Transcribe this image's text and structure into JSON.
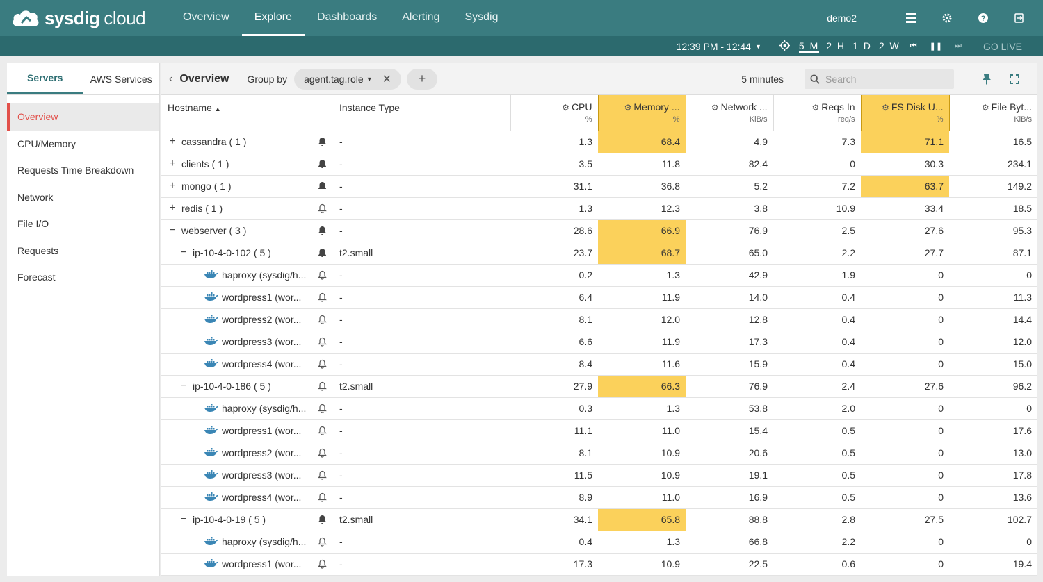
{
  "topbar": {
    "logo_bold": "sysdig",
    "logo_light": "cloud",
    "nav": [
      "Overview",
      "Explore",
      "Dashboards",
      "Alerting",
      "Sysdig"
    ],
    "active_nav": "Explore",
    "user": "demo2"
  },
  "timebar": {
    "range": "12:39 PM - 12:44",
    "ranges": [
      "5 M",
      "2 H",
      "1 D",
      "2 W"
    ],
    "active_range": "5 M",
    "go_live": "GO LIVE"
  },
  "left": {
    "tabs": [
      "Servers",
      "AWS Services"
    ],
    "menu": [
      "Overview",
      "CPU/Memory",
      "Requests Time Breakdown",
      "Network",
      "File I/O",
      "Requests",
      "Forecast"
    ]
  },
  "toolbar": {
    "title": "Overview",
    "group_by_label": "Group by",
    "group_by_value": "agent.tag.role",
    "add_label": "+",
    "period": "5 minutes",
    "search_placeholder": "Search"
  },
  "table": {
    "headers": {
      "hostname": "Hostname",
      "instance_type": "Instance Type",
      "cpu": "CPU",
      "cpu_unit": "%",
      "memory": "Memory ...",
      "memory_unit": "%",
      "network": "Network ...",
      "network_unit": "KiB/s",
      "reqs": "Reqs In",
      "reqs_unit": "req/s",
      "fsdisk": "FS Disk U...",
      "fsdisk_unit": "%",
      "filebytes": "File Byt...",
      "filebytes_unit": "KiB/s"
    },
    "highlight_color": "#fbd15b",
    "rows": [
      {
        "level": 0,
        "toggle": "+",
        "name": "cassandra ( 1 )",
        "bell": "filled",
        "inst": "-",
        "cpu": "1.3",
        "mem": "68.4",
        "net": "4.9",
        "req": "7.3",
        "fsd": "71.1",
        "fb": "16.5",
        "hl": [
          "mem",
          "fsd"
        ]
      },
      {
        "level": 0,
        "toggle": "+",
        "name": "clients ( 1 )",
        "bell": "filled",
        "inst": "-",
        "cpu": "3.5",
        "mem": "11.8",
        "net": "82.4",
        "req": "0",
        "fsd": "30.3",
        "fb": "234.1",
        "hl": []
      },
      {
        "level": 0,
        "toggle": "+",
        "name": "mongo ( 1 )",
        "bell": "filled",
        "inst": "-",
        "cpu": "31.1",
        "mem": "36.8",
        "net": "5.2",
        "req": "7.2",
        "fsd": "63.7",
        "fb": "149.2",
        "hl": [
          "fsd"
        ]
      },
      {
        "level": 0,
        "toggle": "+",
        "name": "redis ( 1 )",
        "bell": "outline",
        "inst": "-",
        "cpu": "1.3",
        "mem": "12.3",
        "net": "3.8",
        "req": "10.9",
        "fsd": "33.4",
        "fb": "18.5",
        "hl": []
      },
      {
        "level": 0,
        "toggle": "−",
        "name": "webserver ( 3 )",
        "bell": "filled",
        "inst": "-",
        "cpu": "28.6",
        "mem": "66.9",
        "net": "76.9",
        "req": "2.5",
        "fsd": "27.6",
        "fb": "95.3",
        "hl": [
          "mem"
        ]
      },
      {
        "level": 1,
        "toggle": "−",
        "name": "ip-10-4-0-102 ( 5 )",
        "bell": "filled",
        "inst": "t2.small",
        "cpu": "23.7",
        "mem": "68.7",
        "net": "65.0",
        "req": "2.2",
        "fsd": "27.7",
        "fb": "87.1",
        "hl": [
          "mem"
        ]
      },
      {
        "level": 2,
        "toggle": "",
        "name": "haproxy (sysdig/h...",
        "bell": "outline",
        "inst": "-",
        "cpu": "0.2",
        "mem": "1.3",
        "net": "42.9",
        "req": "1.9",
        "fsd": "0",
        "fb": "0",
        "hl": []
      },
      {
        "level": 2,
        "toggle": "",
        "name": "wordpress1 (wor...",
        "bell": "outline",
        "inst": "-",
        "cpu": "6.4",
        "mem": "11.9",
        "net": "14.0",
        "req": "0.4",
        "fsd": "0",
        "fb": "11.3",
        "hl": []
      },
      {
        "level": 2,
        "toggle": "",
        "name": "wordpress2 (wor...",
        "bell": "outline",
        "inst": "-",
        "cpu": "8.1",
        "mem": "12.0",
        "net": "12.8",
        "req": "0.4",
        "fsd": "0",
        "fb": "14.4",
        "hl": []
      },
      {
        "level": 2,
        "toggle": "",
        "name": "wordpress3 (wor...",
        "bell": "outline",
        "inst": "-",
        "cpu": "6.6",
        "mem": "11.9",
        "net": "17.3",
        "req": "0.4",
        "fsd": "0",
        "fb": "12.0",
        "hl": []
      },
      {
        "level": 2,
        "toggle": "",
        "name": "wordpress4 (wor...",
        "bell": "outline",
        "inst": "-",
        "cpu": "8.4",
        "mem": "11.6",
        "net": "15.9",
        "req": "0.4",
        "fsd": "0",
        "fb": "15.0",
        "hl": []
      },
      {
        "level": 1,
        "toggle": "−",
        "name": "ip-10-4-0-186 ( 5 )",
        "bell": "outline",
        "inst": "t2.small",
        "cpu": "27.9",
        "mem": "66.3",
        "net": "76.9",
        "req": "2.4",
        "fsd": "27.6",
        "fb": "96.2",
        "hl": [
          "mem"
        ]
      },
      {
        "level": 2,
        "toggle": "",
        "name": "haproxy (sysdig/h...",
        "bell": "outline",
        "inst": "-",
        "cpu": "0.3",
        "mem": "1.3",
        "net": "53.8",
        "req": "2.0",
        "fsd": "0",
        "fb": "0",
        "hl": []
      },
      {
        "level": 2,
        "toggle": "",
        "name": "wordpress1 (wor...",
        "bell": "outline",
        "inst": "-",
        "cpu": "11.1",
        "mem": "11.0",
        "net": "15.4",
        "req": "0.5",
        "fsd": "0",
        "fb": "17.6",
        "hl": []
      },
      {
        "level": 2,
        "toggle": "",
        "name": "wordpress2 (wor...",
        "bell": "outline",
        "inst": "-",
        "cpu": "8.1",
        "mem": "10.9",
        "net": "20.6",
        "req": "0.5",
        "fsd": "0",
        "fb": "13.0",
        "hl": []
      },
      {
        "level": 2,
        "toggle": "",
        "name": "wordpress3 (wor...",
        "bell": "outline",
        "inst": "-",
        "cpu": "11.5",
        "mem": "10.9",
        "net": "19.1",
        "req": "0.5",
        "fsd": "0",
        "fb": "17.8",
        "hl": []
      },
      {
        "level": 2,
        "toggle": "",
        "name": "wordpress4 (wor...",
        "bell": "outline",
        "inst": "-",
        "cpu": "8.9",
        "mem": "11.0",
        "net": "16.9",
        "req": "0.5",
        "fsd": "0",
        "fb": "13.6",
        "hl": []
      },
      {
        "level": 1,
        "toggle": "−",
        "name": "ip-10-4-0-19 ( 5 )",
        "bell": "filled",
        "inst": "t2.small",
        "cpu": "34.1",
        "mem": "65.8",
        "net": "88.8",
        "req": "2.8",
        "fsd": "27.5",
        "fb": "102.7",
        "hl": [
          "mem"
        ]
      },
      {
        "level": 2,
        "toggle": "",
        "name": "haproxy (sysdig/h...",
        "bell": "outline",
        "inst": "-",
        "cpu": "0.4",
        "mem": "1.3",
        "net": "66.8",
        "req": "2.2",
        "fsd": "0",
        "fb": "0",
        "hl": []
      },
      {
        "level": 2,
        "toggle": "",
        "name": "wordpress1 (wor...",
        "bell": "outline",
        "inst": "-",
        "cpu": "17.3",
        "mem": "10.9",
        "net": "22.5",
        "req": "0.6",
        "fsd": "0",
        "fb": "19.4",
        "hl": []
      }
    ]
  }
}
